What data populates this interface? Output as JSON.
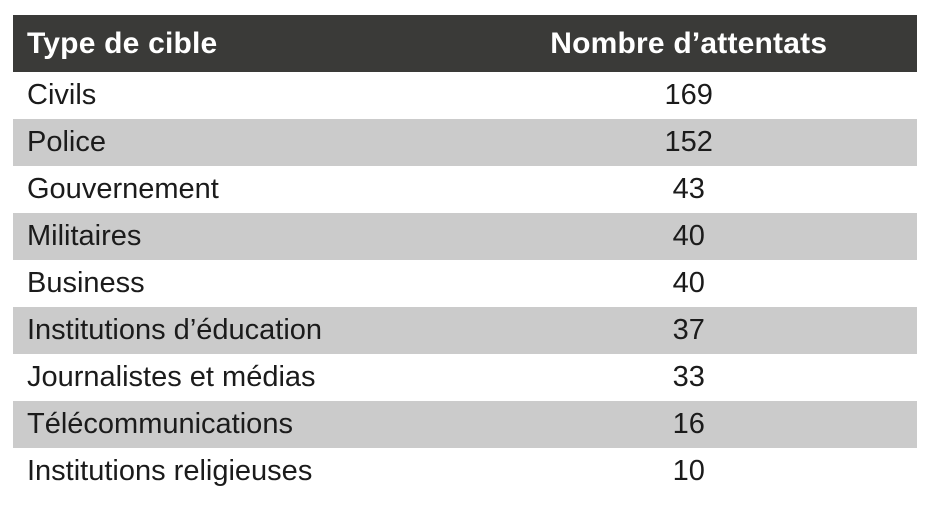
{
  "colors": {
    "header_bg": "#3a3a38",
    "header_text": "#ffffff",
    "row_bg": "#ffffff",
    "row_alt_bg": "#cbcbcb",
    "body_text": "#1b1b1b"
  },
  "chart_data": {
    "type": "table",
    "columns": [
      "Type de cible",
      "Nombre d’attentats"
    ],
    "rows": [
      [
        "Civils",
        169
      ],
      [
        "Police",
        152
      ],
      [
        "Gouvernement",
        43
      ],
      [
        "Militaires",
        40
      ],
      [
        "Business",
        40
      ],
      [
        "Institutions d’éducation",
        37
      ],
      [
        "Journalistes et médias",
        33
      ],
      [
        "Télécommunications",
        16
      ],
      [
        "Institutions religieuses",
        10
      ]
    ],
    "layout": {
      "zebra_striping": true,
      "first_column_align": "left",
      "second_column_align": "center"
    }
  }
}
